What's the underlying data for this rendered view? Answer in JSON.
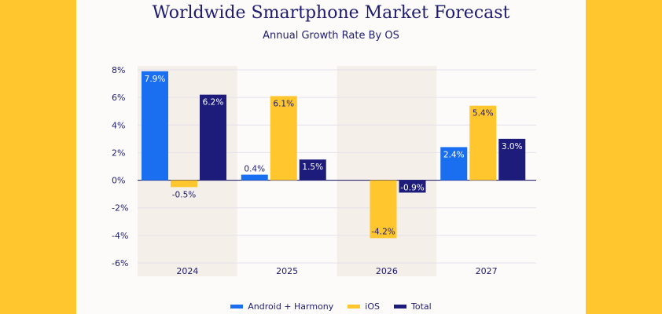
{
  "chart_data": {
    "type": "bar",
    "title": "Worldwide Smartphone Market Forecast",
    "subtitle": "Annual Growth Rate By OS",
    "categories": [
      "2024",
      "2025",
      "2026",
      "2027"
    ],
    "series": [
      {
        "name": "Android + Harmony",
        "color": "#1A6EF0",
        "values": [
          7.9,
          0.4,
          null,
          2.4
        ],
        "labels": [
          "7.9%",
          "0.4%",
          "",
          "2.4%"
        ]
      },
      {
        "name": "iOS",
        "color": "#FFC62E",
        "values": [
          -0.5,
          6.1,
          -4.2,
          5.4
        ],
        "labels": [
          "-0.5%",
          "6.1%",
          "-4.2%",
          "5.4%"
        ]
      },
      {
        "name": "Total",
        "color": "#1E1C7A",
        "values": [
          6.2,
          1.5,
          -0.9,
          3.0
        ],
        "labels": [
          "6.2%",
          "1.5%",
          "-0.9%",
          "3.0%"
        ]
      }
    ],
    "ylim": [
      -6,
      8
    ],
    "yticks": [
      "8%",
      "6%",
      "4%",
      "2%",
      "0%",
      "-2%",
      "-4%",
      "-6%"
    ],
    "ytick_values": [
      8,
      6,
      4,
      2,
      0,
      -2,
      -4,
      -6
    ],
    "grid": true,
    "shaded_categories": [
      "2024",
      "2026"
    ],
    "legend": "bottom",
    "xlabel": "",
    "ylabel": ""
  }
}
